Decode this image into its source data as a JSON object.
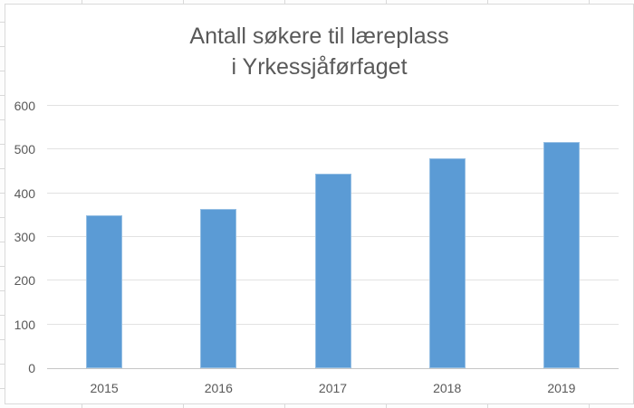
{
  "chart_data": {
    "type": "bar",
    "title": "Antall søkere til læreplass i Yrkessjåførfaget",
    "title_line1": "Antall søkere til læreplass",
    "title_line2": "i Yrkessjåførfaget",
    "categories": [
      "2015",
      "2016",
      "2017",
      "2018",
      "2019"
    ],
    "values": [
      350,
      365,
      445,
      480,
      518
    ],
    "xlabel": "",
    "ylabel": "",
    "ylim": [
      0,
      600
    ],
    "ytick_interval": 100,
    "ytick_labels": [
      "0",
      "100",
      "200",
      "300",
      "400",
      "500",
      "600"
    ],
    "grid": true,
    "legend": false,
    "colors": {
      "bar": "#5b9bd5",
      "gridline": "#e2e2e2",
      "axis_line": "#c6c6c6",
      "text": "#595959",
      "chart_border": "#d9d9d9",
      "background": "#ffffff",
      "sheet_cell_border": "#d9d9d9"
    }
  }
}
